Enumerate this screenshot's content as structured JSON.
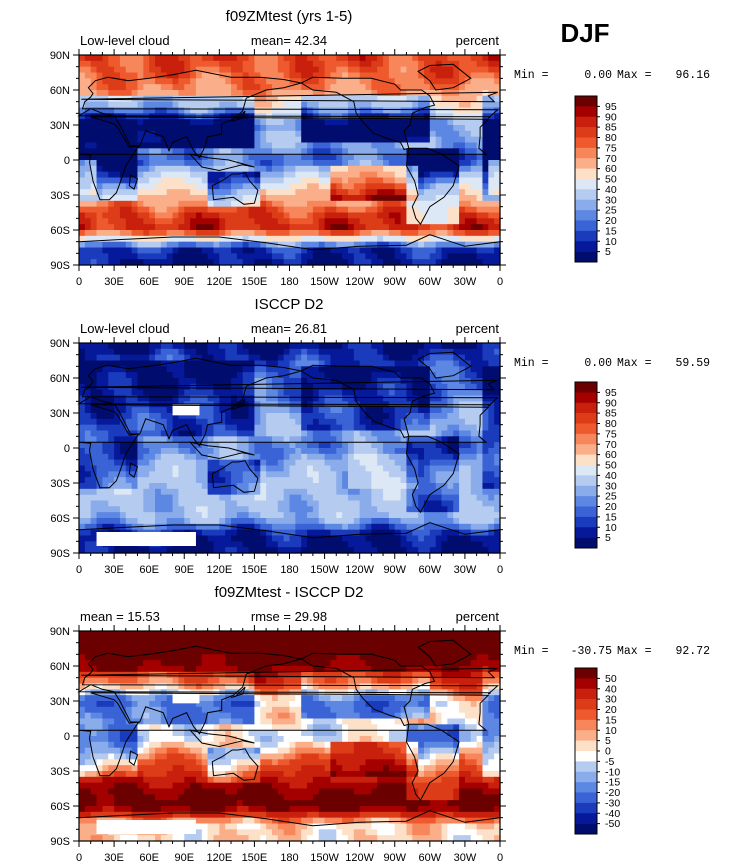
{
  "season_label": "DJF",
  "chart_data": [
    {
      "type": "heatmap",
      "title": "f09ZMtest (yrs 1-5)",
      "left_label": "Low-level cloud",
      "center_label": "mean=  42.34",
      "right_label": "percent",
      "stats": {
        "min_label": "Min =",
        "min_value": "0.00",
        "max_label": "Max =",
        "max_value": "96.16"
      },
      "x_ticks": [
        "0",
        "30E",
        "60E",
        "90E",
        "120E",
        "150E",
        "180",
        "150W",
        "120W",
        "90W",
        "60W",
        "30W",
        "0"
      ],
      "y_ticks": [
        "90N",
        "60N",
        "30N",
        "0",
        "30S",
        "60S",
        "90S"
      ],
      "xlim": [
        0,
        360
      ],
      "ylim": [
        -90,
        90
      ],
      "colorbar": {
        "labels": [
          "95",
          "90",
          "85",
          "80",
          "75",
          "70",
          "60",
          "50",
          "40",
          "30",
          "25",
          "20",
          "15",
          "10",
          "5"
        ],
        "colors": [
          "#6b0000",
          "#a50000",
          "#c8200c",
          "#dc3c18",
          "#ee5a2e",
          "#f7865a",
          "#fbae8a",
          "#fde0c8",
          "#dde8f6",
          "#b5cbef",
          "#8aacea",
          "#5c87e2",
          "#3a63d6",
          "#1b3bbd",
          "#06199a",
          "#000d6e"
        ]
      },
      "zonal_profile": [
        {
          "lat": 90,
          "value": 82
        },
        {
          "lat": 75,
          "value": 78
        },
        {
          "lat": 60,
          "value": 72
        },
        {
          "lat": 45,
          "value": 55
        },
        {
          "lat": 30,
          "value": 22
        },
        {
          "lat": 15,
          "value": 28
        },
        {
          "lat": 0,
          "value": 18
        },
        {
          "lat": -15,
          "value": 40
        },
        {
          "lat": -30,
          "value": 62
        },
        {
          "lat": -45,
          "value": 82
        },
        {
          "lat": -60,
          "value": 88
        },
        {
          "lat": -75,
          "value": 10
        },
        {
          "lat": -90,
          "value": 5
        }
      ]
    },
    {
      "type": "heatmap",
      "title": "ISCCP D2",
      "left_label": "Low-level cloud",
      "center_label": "mean=  26.81",
      "right_label": "percent",
      "stats": {
        "min_label": "Min =",
        "min_value": "0.00",
        "max_label": "Max =",
        "max_value": "59.59"
      },
      "x_ticks": [
        "0",
        "30E",
        "60E",
        "90E",
        "120E",
        "150E",
        "180",
        "150W",
        "120W",
        "90W",
        "60W",
        "30W",
        "0"
      ],
      "y_ticks": [
        "90N",
        "60N",
        "30N",
        "0",
        "30S",
        "60S",
        "90S"
      ],
      "xlim": [
        0,
        360
      ],
      "ylim": [
        -90,
        90
      ],
      "colorbar": {
        "labels": [
          "95",
          "90",
          "85",
          "80",
          "75",
          "70",
          "60",
          "50",
          "40",
          "30",
          "25",
          "20",
          "15",
          "10",
          "5"
        ],
        "colors": [
          "#6b0000",
          "#a50000",
          "#c8200c",
          "#dc3c18",
          "#ee5a2e",
          "#f7865a",
          "#fbae8a",
          "#fde0c8",
          "#dde8f6",
          "#b5cbef",
          "#8aacea",
          "#5c87e2",
          "#3a63d6",
          "#1b3bbd",
          "#06199a",
          "#000d6e"
        ]
      },
      "zonal_profile": [
        {
          "lat": 90,
          "value": 3
        },
        {
          "lat": 75,
          "value": 12
        },
        {
          "lat": 60,
          "value": 18
        },
        {
          "lat": 45,
          "value": 22
        },
        {
          "lat": 30,
          "value": 26
        },
        {
          "lat": 15,
          "value": 28
        },
        {
          "lat": 0,
          "value": 22
        },
        {
          "lat": -15,
          "value": 30
        },
        {
          "lat": -30,
          "value": 33
        },
        {
          "lat": -45,
          "value": 32
        },
        {
          "lat": -60,
          "value": 30
        },
        {
          "lat": -75,
          "value": 6
        },
        {
          "lat": -90,
          "value": 3
        }
      ]
    },
    {
      "type": "heatmap",
      "title": "f09ZMtest - ISCCP D2",
      "left_label": "mean =  15.53",
      "center_label": "rmse =  29.98",
      "right_label": "percent",
      "stats": {
        "min_label": "Min =",
        "min_value": "-30.75",
        "max_label": "Max =",
        "max_value": "92.72"
      },
      "x_ticks": [
        "0",
        "30E",
        "60E",
        "90E",
        "120E",
        "150E",
        "180",
        "150W",
        "120W",
        "90W",
        "60W",
        "30W",
        "0"
      ],
      "y_ticks": [
        "90N",
        "60N",
        "30N",
        "0",
        "30S",
        "60S",
        "90S"
      ],
      "xlim": [
        0,
        360
      ],
      "ylim": [
        -90,
        90
      ],
      "colorbar": {
        "labels": [
          "50",
          "40",
          "30",
          "20",
          "15",
          "10",
          "5",
          "0",
          "-5",
          "-10",
          "-15",
          "-20",
          "-30",
          "-40",
          "-50"
        ],
        "colors": [
          "#6b0000",
          "#a50000",
          "#c8200c",
          "#dc3c18",
          "#ee5a2e",
          "#f7865a",
          "#fbae8a",
          "#fde0c8",
          "#ffffff",
          "#b5cbef",
          "#8aacea",
          "#5c87e2",
          "#3a63d6",
          "#1b3bbd",
          "#06199a",
          "#000d6e"
        ]
      },
      "zonal_profile": [
        {
          "lat": 90,
          "value": 80
        },
        {
          "lat": 75,
          "value": 62
        },
        {
          "lat": 60,
          "value": 52
        },
        {
          "lat": 45,
          "value": 32
        },
        {
          "lat": 30,
          "value": -4
        },
        {
          "lat": 15,
          "value": 2
        },
        {
          "lat": 0,
          "value": -6
        },
        {
          "lat": -15,
          "value": 10
        },
        {
          "lat": -30,
          "value": 28
        },
        {
          "lat": -45,
          "value": 50
        },
        {
          "lat": -60,
          "value": 58
        },
        {
          "lat": -75,
          "value": 3
        },
        {
          "lat": -90,
          "value": 2
        }
      ]
    }
  ]
}
